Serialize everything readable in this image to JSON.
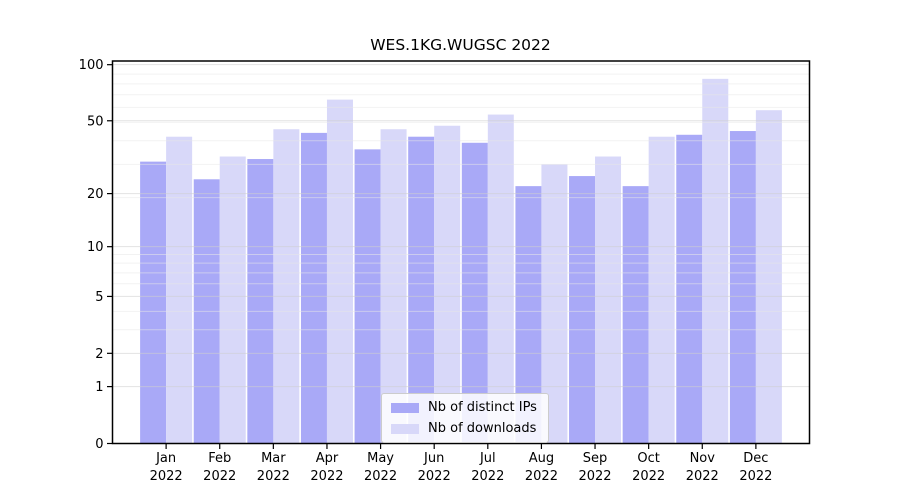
{
  "chart_data": {
    "type": "bar",
    "title": "WES.1KG.WUGSC 2022",
    "year": "2022",
    "months": [
      "Jan",
      "Feb",
      "Mar",
      "Apr",
      "May",
      "Jun",
      "Jul",
      "Aug",
      "Sep",
      "Oct",
      "Nov",
      "Dec"
    ],
    "categories": [
      "Jan 2022",
      "Feb 2022",
      "Mar 2022",
      "Apr 2022",
      "May 2022",
      "Jun 2022",
      "Jul 2022",
      "Aug 2022",
      "Sep 2022",
      "Oct 2022",
      "Nov 2022",
      "Dec 2022"
    ],
    "series": [
      {
        "name": "Nb of distinct IPs",
        "color": "#a9a9f7",
        "values": [
          30,
          24,
          31,
          43,
          35,
          41,
          38,
          22,
          25,
          22,
          42,
          44
        ]
      },
      {
        "name": "Nb of downloads",
        "color": "#d8d8f9",
        "values": [
          41,
          32,
          45,
          65,
          45,
          47,
          54,
          29,
          32,
          41,
          84,
          57
        ]
      }
    ],
    "yscale": "log1p",
    "ylim": [
      0,
      105
    ],
    "y_ticks": [
      100,
      50,
      20,
      10,
      5,
      2,
      1,
      0
    ],
    "y_minor_gridlines": [
      3,
      4,
      6,
      7,
      8,
      9,
      19,
      29,
      39,
      49,
      59,
      69,
      79,
      89
    ],
    "grid": true,
    "legend_position": "lower center",
    "colors": {
      "axis": "#000000",
      "grid_major": "#cfcfcf",
      "grid_minor": "#e7e7e7",
      "background": "#ffffff"
    }
  }
}
